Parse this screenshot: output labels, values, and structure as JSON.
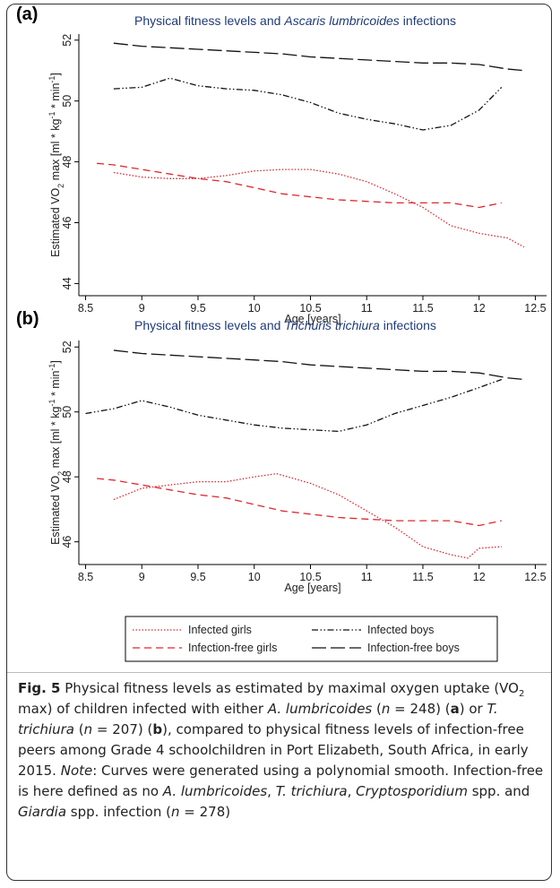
{
  "chart_data": [
    {
      "type": "line",
      "panel": "(a)",
      "title": {
        "text": "Physical fitness levels and",
        "species": "Ascaris lumbricoides",
        "suffix": "infections"
      },
      "xlabel": "Age [years]",
      "ylabel": [
        "Estimated VO",
        "2",
        " max [ml * kg",
        "-1",
        " * min",
        "-1",
        "]"
      ],
      "xlim": [
        8.44,
        12.6
      ],
      "xticks": [
        8.5,
        9,
        9.5,
        10,
        10.5,
        11,
        11.5,
        12,
        12.5
      ],
      "ylim": [
        43.6,
        52.2
      ],
      "yticks": [
        44,
        46,
        48,
        50,
        52
      ],
      "series": [
        {
          "color": "#e0262f",
          "dash": "dotted",
          "x": [
            8.75,
            9,
            9.25,
            9.5,
            9.75,
            10,
            10.25,
            10.5,
            10.75,
            11,
            11.25,
            11.5,
            11.75,
            12,
            12.25,
            12.4
          ],
          "values": [
            47.65,
            47.5,
            47.45,
            47.45,
            47.55,
            47.7,
            47.75,
            47.75,
            47.6,
            47.35,
            46.95,
            46.5,
            45.9,
            45.65,
            45.5,
            45.2
          ]
        },
        {
          "color": "#e0262f",
          "dash": "dashed",
          "x": [
            8.6,
            8.75,
            9,
            9.25,
            9.5,
            9.75,
            10,
            10.25,
            10.5,
            10.75,
            11,
            11.25,
            11.5,
            11.75,
            12,
            12.2
          ],
          "values": [
            47.95,
            47.9,
            47.75,
            47.6,
            47.45,
            47.35,
            47.15,
            46.95,
            46.85,
            46.75,
            46.7,
            46.65,
            46.65,
            46.65,
            46.5,
            46.65
          ]
        },
        {
          "color": "#111111",
          "dash": "dashdotdot",
          "x": [
            8.75,
            9,
            9.25,
            9.5,
            9.75,
            10,
            10.25,
            10.5,
            10.75,
            11,
            11.25,
            11.5,
            11.75,
            12,
            12.2
          ],
          "values": [
            50.4,
            50.45,
            50.75,
            50.5,
            50.4,
            50.35,
            50.2,
            49.95,
            49.6,
            49.4,
            49.25,
            49.05,
            49.2,
            49.7,
            50.45
          ]
        },
        {
          "color": "#111111",
          "dash": "longdash",
          "x": [
            8.75,
            9,
            9.25,
            9.5,
            9.75,
            10,
            10.25,
            10.5,
            10.75,
            11,
            11.25,
            11.5,
            11.75,
            12,
            12.25,
            12.4
          ],
          "values": [
            51.9,
            51.8,
            51.75,
            51.7,
            51.65,
            51.6,
            51.55,
            51.45,
            51.4,
            51.35,
            51.3,
            51.25,
            51.25,
            51.2,
            51.05,
            51.0
          ]
        }
      ]
    },
    {
      "type": "line",
      "panel": "(b)",
      "title": {
        "text": "Physical fitness levels and",
        "species": "Trichuris trichiura",
        "suffix": "infections"
      },
      "xlabel": "Age [years]",
      "ylabel": [
        "Estimated VO",
        "2",
        " max [ml * kg",
        "-1",
        " * min",
        "-1",
        "]"
      ],
      "xlim": [
        8.44,
        12.6
      ],
      "xticks": [
        8.5,
        9,
        9.5,
        10,
        10.5,
        11,
        11.5,
        12,
        12.5
      ],
      "ylim": [
        45.3,
        52.2
      ],
      "yticks": [
        46,
        48,
        50,
        52
      ],
      "legend": "bottom",
      "series": [
        {
          "name": "Infected girls",
          "color": "#e0262f",
          "dash": "dotted",
          "x": [
            8.75,
            9,
            9.25,
            9.5,
            9.75,
            10,
            10.2,
            10.5,
            10.75,
            11,
            11.25,
            11.5,
            11.75,
            11.9,
            12,
            12.2
          ],
          "values": [
            47.3,
            47.65,
            47.75,
            47.85,
            47.85,
            48.0,
            48.1,
            47.8,
            47.45,
            46.95,
            46.45,
            45.85,
            45.6,
            45.5,
            45.8,
            45.85
          ]
        },
        {
          "name": "Infection-free girls",
          "color": "#e0262f",
          "dash": "dashed",
          "x": [
            8.6,
            8.75,
            9,
            9.25,
            9.5,
            9.75,
            10,
            10.25,
            10.5,
            10.75,
            11,
            11.25,
            11.5,
            11.75,
            12,
            12.2
          ],
          "values": [
            47.95,
            47.9,
            47.75,
            47.6,
            47.45,
            47.35,
            47.15,
            46.95,
            46.85,
            46.75,
            46.7,
            46.65,
            46.65,
            46.65,
            46.5,
            46.65
          ]
        },
        {
          "name": "Infected boys",
          "color": "#111111",
          "dash": "dashdotdot",
          "x": [
            8.5,
            8.75,
            9,
            9.25,
            9.5,
            9.75,
            10,
            10.25,
            10.5,
            10.75,
            11,
            11.25,
            11.5,
            11.75,
            12,
            12.2
          ],
          "values": [
            49.95,
            50.1,
            50.35,
            50.15,
            49.9,
            49.75,
            49.6,
            49.5,
            49.45,
            49.4,
            49.6,
            49.95,
            50.2,
            50.45,
            50.75,
            51.0
          ]
        },
        {
          "name": "Infection-free boys",
          "color": "#111111",
          "dash": "longdash",
          "x": [
            8.75,
            9,
            9.25,
            9.5,
            9.75,
            10,
            10.25,
            10.5,
            10.75,
            11,
            11.25,
            11.5,
            11.75,
            12,
            12.25,
            12.4
          ],
          "values": [
            51.9,
            51.8,
            51.75,
            51.7,
            51.65,
            51.6,
            51.55,
            51.45,
            51.4,
            51.35,
            51.3,
            51.25,
            51.25,
            51.2,
            51.05,
            51.0
          ]
        }
      ]
    }
  ],
  "caption": [
    {
      "text": "Fig. 5",
      "style": "bold"
    },
    {
      "text": " Physical fitness levels as estimated by maximal oxygen uptake (VO"
    },
    {
      "text": "2",
      "style": "sub"
    },
    {
      "text": " max) of children infected with either "
    },
    {
      "text": "A. lumbricoides",
      "style": "italic"
    },
    {
      "text": " ("
    },
    {
      "text": "n",
      "style": "italic"
    },
    {
      "text": " = 248) ("
    },
    {
      "text": "a",
      "style": "bold"
    },
    {
      "text": ") or "
    },
    {
      "text": "T. trichiura",
      "style": "italic"
    },
    {
      "text": " ("
    },
    {
      "text": "n",
      "style": "italic"
    },
    {
      "text": " = 207) ("
    },
    {
      "text": "b",
      "style": "bold"
    },
    {
      "text": "), compared to physical fitness levels of infection-free peers among Grade 4 schoolchildren in Port Elizabeth, South Africa, in early 2015. "
    },
    {
      "text": "Note",
      "style": "italic"
    },
    {
      "text": ": Curves were generated using a polynomial smooth. Infection-free is here defined as no "
    },
    {
      "text": "A. lumbricoides",
      "style": "italic"
    },
    {
      "text": ", "
    },
    {
      "text": "T. trichiura",
      "style": "italic"
    },
    {
      "text": ", "
    },
    {
      "text": "Cryptosporidium",
      "style": "italic"
    },
    {
      "text": " spp. and "
    },
    {
      "text": "Giardia",
      "style": "italic"
    },
    {
      "text": " spp. infection ("
    },
    {
      "text": "n",
      "style": "italic"
    },
    {
      "text": " = 278)"
    }
  ]
}
